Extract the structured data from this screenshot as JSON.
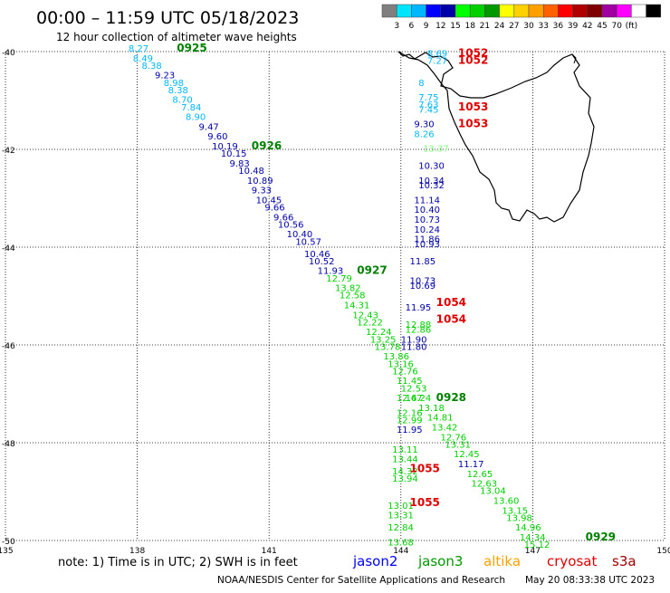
{
  "header": {
    "title": "00:00 – 11:59 UTC 05/18/2023",
    "subtitle": "12 hour collection of altimeter wave heights"
  },
  "color_scale": {
    "colors": [
      "#7f7f7f",
      "#00e5ff",
      "#00b7ff",
      "#0000ff",
      "#0000a8",
      "#00ff00",
      "#00d000",
      "#009800",
      "#ffff00",
      "#ffd000",
      "#ffa000",
      "#ff6000",
      "#ff0000",
      "#b00000",
      "#800000",
      "#a000a0",
      "#ff00ff",
      "#ffffff",
      "#000000"
    ],
    "labels": [
      "3",
      "6",
      "9",
      "12",
      "15",
      "18",
      "21",
      "24",
      "27",
      "30",
      "33",
      "36",
      "39",
      "42",
      "45",
      "70",
      "(ft)"
    ]
  },
  "map": {
    "lon_min": 135,
    "lon_max": 150,
    "lat_min": -50,
    "lat_max": -40,
    "lon_ticks": [
      "135",
      "138",
      "141",
      "144",
      "147",
      "150"
    ],
    "lat_ticks": [
      "-40",
      "-42",
      "-44",
      "-46",
      "-48",
      "-50"
    ]
  },
  "observations": [
    {
      "lon": 137.8,
      "lat": -40.0,
      "v": "8.27",
      "c": "#00b7ff"
    },
    {
      "lon": 137.9,
      "lat": -40.2,
      "v": "8.49",
      "c": "#00b7ff"
    },
    {
      "lon": 138.1,
      "lat": -40.35,
      "v": "8.38",
      "c": "#00b7ff"
    },
    {
      "lon": 138.4,
      "lat": -40.55,
      "v": "9.23",
      "c": "#0000a8"
    },
    {
      "lon": 138.6,
      "lat": -40.7,
      "v": "8.98",
      "c": "#00b7ff"
    },
    {
      "lon": 138.7,
      "lat": -40.85,
      "v": "8.38",
      "c": "#00b7ff"
    },
    {
      "lon": 138.8,
      "lat": -41.05,
      "v": "8.70",
      "c": "#00b7ff"
    },
    {
      "lon": 139.0,
      "lat": -41.2,
      "v": "7.84",
      "c": "#00b7ff"
    },
    {
      "lon": 139.1,
      "lat": -41.4,
      "v": "8.90",
      "c": "#00b7ff"
    },
    {
      "lon": 139.4,
      "lat": -41.6,
      "v": "9.47",
      "c": "#0000a8"
    },
    {
      "lon": 139.6,
      "lat": -41.8,
      "v": "9.60",
      "c": "#0000a8"
    },
    {
      "lon": 139.7,
      "lat": -42.0,
      "v": "10.19",
      "c": "#0000a8"
    },
    {
      "lon": 139.9,
      "lat": -42.15,
      "v": "10.15",
      "c": "#0000a8"
    },
    {
      "lon": 140.1,
      "lat": -42.35,
      "v": "9.83",
      "c": "#0000a8"
    },
    {
      "lon": 140.3,
      "lat": -42.5,
      "v": "10.48",
      "c": "#0000a8"
    },
    {
      "lon": 140.5,
      "lat": -42.7,
      "v": "10.89",
      "c": "#0000a8"
    },
    {
      "lon": 140.6,
      "lat": -42.9,
      "v": "9.33",
      "c": "#0000a8"
    },
    {
      "lon": 140.7,
      "lat": -43.1,
      "v": "10.45",
      "c": "#0000a8"
    },
    {
      "lon": 140.9,
      "lat": -43.25,
      "v": "9.66",
      "c": "#0000a8"
    },
    {
      "lon": 141.1,
      "lat": -43.45,
      "v": "9.66",
      "c": "#0000a8"
    },
    {
      "lon": 141.2,
      "lat": -43.6,
      "v": "10.56",
      "c": "#0000a8"
    },
    {
      "lon": 141.4,
      "lat": -43.8,
      "v": "10.40",
      "c": "#0000a8"
    },
    {
      "lon": 141.6,
      "lat": -43.95,
      "v": "10.57",
      "c": "#0000a8"
    },
    {
      "lon": 141.8,
      "lat": -44.2,
      "v": "10.46",
      "c": "#0000a8"
    },
    {
      "lon": 141.9,
      "lat": -44.35,
      "v": "10.52",
      "c": "#0000a8"
    },
    {
      "lon": 142.1,
      "lat": -44.55,
      "v": "11.93",
      "c": "#0000a8"
    },
    {
      "lon": 142.3,
      "lat": -44.7,
      "v": "12.79",
      "c": "#00d000"
    },
    {
      "lon": 142.5,
      "lat": -44.9,
      "v": "13.82",
      "c": "#00d000"
    },
    {
      "lon": 142.6,
      "lat": -45.05,
      "v": "12.58",
      "c": "#00d000"
    },
    {
      "lon": 142.7,
      "lat": -45.25,
      "v": "14.31",
      "c": "#00d000"
    },
    {
      "lon": 142.9,
      "lat": -45.45,
      "v": "12.43",
      "c": "#00d000"
    },
    {
      "lon": 143.0,
      "lat": -45.6,
      "v": "12.22",
      "c": "#00d000"
    },
    {
      "lon": 143.2,
      "lat": -45.8,
      "v": "12.24",
      "c": "#00d000"
    },
    {
      "lon": 143.3,
      "lat": -45.95,
      "v": "13.25",
      "c": "#00d000"
    },
    {
      "lon": 143.4,
      "lat": -46.1,
      "v": "13.78",
      "c": "#00d000"
    },
    {
      "lon": 143.6,
      "lat": -46.3,
      "v": "13.86",
      "c": "#00d000"
    },
    {
      "lon": 143.7,
      "lat": -46.45,
      "v": "13.16",
      "c": "#00d000"
    },
    {
      "lon": 143.8,
      "lat": -46.6,
      "v": "12.76",
      "c": "#00d000"
    },
    {
      "lon": 143.9,
      "lat": -46.8,
      "v": "11.45",
      "c": "#00d000"
    },
    {
      "lon": 144.0,
      "lat": -46.95,
      "v": "12.53",
      "c": "#00d000"
    },
    {
      "lon": 144.1,
      "lat": -47.15,
      "v": "14.24",
      "c": "#00d000"
    },
    {
      "lon": 144.4,
      "lat": -47.35,
      "v": "13.18",
      "c": "#00d000"
    },
    {
      "lon": 144.6,
      "lat": -47.55,
      "v": "14.81",
      "c": "#00d000"
    },
    {
      "lon": 144.7,
      "lat": -47.75,
      "v": "13.42",
      "c": "#00d000"
    },
    {
      "lon": 144.9,
      "lat": -47.95,
      "v": "12.76",
      "c": "#00d000"
    },
    {
      "lon": 145.0,
      "lat": -48.1,
      "v": "13.31",
      "c": "#00d000"
    },
    {
      "lon": 145.2,
      "lat": -48.3,
      "v": "12.45",
      "c": "#00d000"
    },
    {
      "lon": 145.3,
      "lat": -48.5,
      "v": "11.17",
      "c": "#0000a8"
    },
    {
      "lon": 145.5,
      "lat": -48.7,
      "v": "12.65",
      "c": "#00d000"
    },
    {
      "lon": 145.6,
      "lat": -48.9,
      "v": "12.63",
      "c": "#00d000"
    },
    {
      "lon": 145.8,
      "lat": -49.05,
      "v": "13.04",
      "c": "#00d000"
    },
    {
      "lon": 146.1,
      "lat": -49.25,
      "v": "13.60",
      "c": "#00d000"
    },
    {
      "lon": 146.3,
      "lat": -49.45,
      "v": "13.15",
      "c": "#00d000"
    },
    {
      "lon": 146.4,
      "lat": -49.6,
      "v": "13.98",
      "c": "#00d000"
    },
    {
      "lon": 146.6,
      "lat": -49.8,
      "v": "14.96",
      "c": "#00d000"
    },
    {
      "lon": 146.7,
      "lat": -50.0,
      "v": "14.34",
      "c": "#00d000"
    },
    {
      "lon": 146.8,
      "lat": -50.15,
      "v": "15.12",
      "c": "#00d000"
    },
    {
      "lon": 144.6,
      "lat": -40.1,
      "v": "8.69",
      "c": "#00b7ff"
    },
    {
      "lon": 144.6,
      "lat": -40.25,
      "v": "7.27",
      "c": "#00b7ff"
    },
    {
      "lon": 144.4,
      "lat": -40.7,
      "v": "8",
      "c": "#00b7ff"
    },
    {
      "lon": 144.4,
      "lat": -41.0,
      "v": "7.75",
      "c": "#00b7ff"
    },
    {
      "lon": 144.4,
      "lat": -41.15,
      "v": "7.63",
      "c": "#00b7ff"
    },
    {
      "lon": 144.4,
      "lat": -41.25,
      "v": "7.45",
      "c": "#00b7ff"
    },
    {
      "lon": 144.3,
      "lat": -41.55,
      "v": "9.30",
      "c": "#0000a8"
    },
    {
      "lon": 144.3,
      "lat": -41.75,
      "v": "8.26",
      "c": "#00b7ff"
    },
    {
      "lon": 144.5,
      "lat": -42.05,
      "v": "13.37",
      "c": "#80ff80"
    },
    {
      "lon": 144.4,
      "lat": -42.4,
      "v": "10.30",
      "c": "#0000a8"
    },
    {
      "lon": 144.4,
      "lat": -42.7,
      "v": "10.34",
      "c": "#0000a8"
    },
    {
      "lon": 144.4,
      "lat": -42.8,
      "v": "10.32",
      "c": "#0000a8"
    },
    {
      "lon": 144.3,
      "lat": -43.1,
      "v": "11.14",
      "c": "#0000a8"
    },
    {
      "lon": 144.3,
      "lat": -43.3,
      "v": "10.40",
      "c": "#0000a8"
    },
    {
      "lon": 144.3,
      "lat": -43.5,
      "v": "10.73",
      "c": "#0000a8"
    },
    {
      "lon": 144.3,
      "lat": -43.7,
      "v": "10.24",
      "c": "#0000a8"
    },
    {
      "lon": 144.3,
      "lat": -43.9,
      "v": "11.86",
      "c": "#0000a8"
    },
    {
      "lon": 144.3,
      "lat": -44.0,
      "v": "10.93",
      "c": "#0000a8"
    },
    {
      "lon": 144.2,
      "lat": -44.35,
      "v": "11.85",
      "c": "#0000a8"
    },
    {
      "lon": 144.2,
      "lat": -44.75,
      "v": "10.73",
      "c": "#0000a8"
    },
    {
      "lon": 144.2,
      "lat": -44.85,
      "v": "10.69",
      "c": "#0000a8"
    },
    {
      "lon": 144.1,
      "lat": -45.3,
      "v": "11.95",
      "c": "#0000a8"
    },
    {
      "lon": 144.1,
      "lat": -45.65,
      "v": "12.88",
      "c": "#00d000"
    },
    {
      "lon": 144.1,
      "lat": -45.75,
      "v": "12.86",
      "c": "#00d000"
    },
    {
      "lon": 144.0,
      "lat": -45.95,
      "v": "11.90",
      "c": "#0000a8"
    },
    {
      "lon": 144.0,
      "lat": -46.1,
      "v": "11.80",
      "c": "#0000a8"
    },
    {
      "lon": 143.9,
      "lat": -47.15,
      "v": "12.67",
      "c": "#00d000"
    },
    {
      "lon": 143.9,
      "lat": -47.45,
      "v": "12.16",
      "c": "#00d000"
    },
    {
      "lon": 143.9,
      "lat": -47.6,
      "v": "12.99",
      "c": "#00d000"
    },
    {
      "lon": 143.9,
      "lat": -47.8,
      "v": "11.95",
      "c": "#0000a8"
    },
    {
      "lon": 143.8,
      "lat": -48.2,
      "v": "13.11",
      "c": "#00d000"
    },
    {
      "lon": 143.8,
      "lat": -48.4,
      "v": "13.44",
      "c": "#00d000"
    },
    {
      "lon": 143.8,
      "lat": -48.65,
      "v": "14.32",
      "c": "#00d000"
    },
    {
      "lon": 143.8,
      "lat": -48.8,
      "v": "13.94",
      "c": "#00d000"
    },
    {
      "lon": 143.7,
      "lat": -49.35,
      "v": "13.01",
      "c": "#00d000"
    },
    {
      "lon": 143.7,
      "lat": -49.55,
      "v": "13.31",
      "c": "#00d000"
    },
    {
      "lon": 143.7,
      "lat": -49.8,
      "v": "12.84",
      "c": "#00d000"
    },
    {
      "lon": 143.7,
      "lat": -50.1,
      "v": "13.68",
      "c": "#00d000"
    }
  ],
  "time_labels": [
    {
      "lon": 138.9,
      "lat": -40.0,
      "t": "0925",
      "c": "#008000"
    },
    {
      "lon": 140.6,
      "lat": -42.0,
      "t": "0926",
      "c": "#008000"
    },
    {
      "lon": 143.0,
      "lat": -44.55,
      "t": "0927",
      "c": "#008000"
    },
    {
      "lon": 144.8,
      "lat": -47.15,
      "t": "0928",
      "c": "#008000"
    },
    {
      "lon": 148.2,
      "lat": -50.0,
      "t": "0929",
      "c": "#008000"
    },
    {
      "lon": 145.3,
      "lat": -40.1,
      "t": "1052",
      "c": "#e00000"
    },
    {
      "lon": 145.3,
      "lat": -40.25,
      "t": "1052",
      "c": "#e00000"
    },
    {
      "lon": 145.3,
      "lat": -41.2,
      "t": "1053",
      "c": "#e00000"
    },
    {
      "lon": 145.3,
      "lat": -41.55,
      "t": "1053",
      "c": "#e00000"
    },
    {
      "lon": 144.8,
      "lat": -45.2,
      "t": "1054",
      "c": "#e00000"
    },
    {
      "lon": 144.8,
      "lat": -45.55,
      "t": "1054",
      "c": "#e00000"
    },
    {
      "lon": 144.2,
      "lat": -48.6,
      "t": "1055",
      "c": "#e00000"
    },
    {
      "lon": 144.2,
      "lat": -49.3,
      "t": "1055",
      "c": "#e00000"
    }
  ],
  "footer": {
    "note": "note: 1) Time is in UTC; 2) SWH is in feet",
    "satellites": [
      {
        "name": "jason2",
        "color": "#0000ff"
      },
      {
        "name": "jason3",
        "color": "#009800"
      },
      {
        "name": "altika",
        "color": "#ffa000"
      },
      {
        "name": "cryosat",
        "color": "#e00000"
      },
      {
        "name": "s3a",
        "color": "#a00000"
      }
    ],
    "credit": "NOAA/NESDIS Center for Satellite Applications and Research",
    "timestamp": "May 20 08:33:38 UTC 2023"
  }
}
